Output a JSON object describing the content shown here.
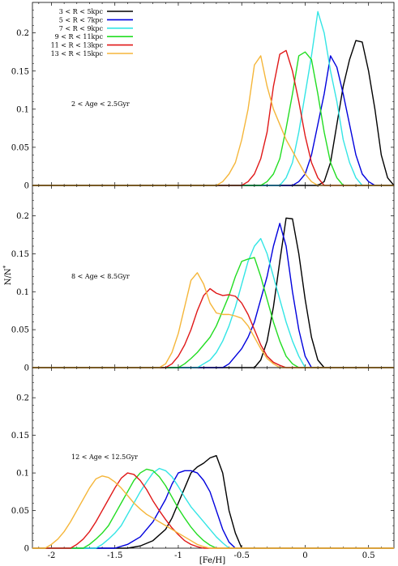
{
  "chart_data": {
    "type": "line",
    "xlabel": "[Fe/H]",
    "ylabel": "N/N*",
    "xlim": [
      -2.15,
      0.7
    ],
    "ylim": [
      0,
      0.24
    ],
    "x_ticks": [
      "-2",
      "-1.5",
      "-1",
      "-0.5",
      "0",
      "0.5"
    ],
    "x_tick_values": [
      -2,
      -1.5,
      -1,
      -0.5,
      0,
      0.5
    ],
    "y_ticks": [
      "0",
      "0.05",
      "0.1",
      "0.15",
      "0.2"
    ],
    "y_tick_values": [
      0,
      0.05,
      0.1,
      0.15,
      0.2
    ],
    "legend": {
      "placement": "top-left",
      "entries": [
        {
          "label": "3 < R < 5kpc",
          "color": "#000000"
        },
        {
          "label": "5 < R < 7kpc",
          "color": "#0000dd"
        },
        {
          "label": "7 < R < 9kpc",
          "color": "#33e5e5"
        },
        {
          "label": "9 < R < 11kpc",
          "color": "#22dd22"
        },
        {
          "label": "11 < R < 13kpc",
          "color": "#e01818"
        },
        {
          "label": "13 < R < 15kpc",
          "color": "#f5b63a"
        }
      ]
    },
    "panels": [
      {
        "age_label": "2 < Age < 2.5Gyr",
        "series": [
          {
            "x": [
              -2.15,
              0.1,
              0.15,
              0.2,
              0.25,
              0.3,
              0.35,
              0.4,
              0.45,
              0.5,
              0.55,
              0.6,
              0.65,
              0.7
            ],
            "y": [
              0,
              0,
              0.005,
              0.03,
              0.08,
              0.13,
              0.165,
              0.19,
              0.188,
              0.15,
              0.1,
              0.04,
              0.01,
              0
            ]
          },
          {
            "x": [
              -2.15,
              -0.1,
              -0.05,
              0,
              0.05,
              0.1,
              0.15,
              0.2,
              0.25,
              0.3,
              0.35,
              0.4,
              0.45,
              0.5,
              0.55,
              0.7
            ],
            "y": [
              0,
              0,
              0.005,
              0.015,
              0.04,
              0.08,
              0.12,
              0.17,
              0.155,
              0.12,
              0.08,
              0.04,
              0.015,
              0.005,
              0,
              0
            ]
          },
          {
            "x": [
              -2.15,
              -0.2,
              -0.15,
              -0.1,
              -0.05,
              0,
              0.05,
              0.1,
              0.15,
              0.2,
              0.25,
              0.3,
              0.35,
              0.4,
              0.45,
              0.7
            ],
            "y": [
              0,
              0,
              0.01,
              0.03,
              0.07,
              0.12,
              0.17,
              0.228,
              0.2,
              0.15,
              0.11,
              0.06,
              0.03,
              0.01,
              0,
              0
            ]
          },
          {
            "x": [
              -2.15,
              -0.35,
              -0.3,
              -0.25,
              -0.2,
              -0.15,
              -0.1,
              -0.05,
              0,
              0.05,
              0.1,
              0.15,
              0.2,
              0.25,
              0.3,
              0.7
            ],
            "y": [
              0,
              0,
              0.005,
              0.015,
              0.035,
              0.075,
              0.12,
              0.17,
              0.175,
              0.165,
              0.12,
              0.07,
              0.03,
              0.01,
              0,
              0
            ]
          },
          {
            "x": [
              -2.15,
              -0.5,
              -0.45,
              -0.4,
              -0.35,
              -0.3,
              -0.25,
              -0.2,
              -0.15,
              -0.1,
              -0.05,
              0,
              0.05,
              0.1,
              0.15,
              0.7
            ],
            "y": [
              0,
              0,
              0.005,
              0.015,
              0.035,
              0.07,
              0.13,
              0.172,
              0.177,
              0.15,
              0.11,
              0.065,
              0.03,
              0.01,
              0,
              0
            ]
          },
          {
            "x": [
              -2.15,
              -0.7,
              -0.65,
              -0.6,
              -0.55,
              -0.5,
              -0.45,
              -0.4,
              -0.35,
              -0.3,
              -0.25,
              -0.2,
              -0.15,
              -0.1,
              -0.05,
              0,
              0.05,
              0.1,
              0.15,
              0.7
            ],
            "y": [
              0,
              0,
              0.005,
              0.015,
              0.03,
              0.06,
              0.1,
              0.158,
              0.17,
              0.13,
              0.1,
              0.08,
              0.06,
              0.045,
              0.03,
              0.015,
              0.005,
              0,
              0,
              0
            ]
          }
        ]
      },
      {
        "age_label": "8 < Age < 8.5Gyr",
        "series": [
          {
            "x": [
              -2.15,
              -0.4,
              -0.35,
              -0.3,
              -0.25,
              -0.2,
              -0.15,
              -0.1,
              -0.05,
              0,
              0.05,
              0.1,
              0.15,
              0.7
            ],
            "y": [
              0,
              0,
              0.01,
              0.035,
              0.08,
              0.14,
              0.197,
              0.196,
              0.15,
              0.09,
              0.04,
              0.01,
              0,
              0
            ]
          },
          {
            "x": [
              -2.15,
              -0.65,
              -0.6,
              -0.55,
              -0.5,
              -0.45,
              -0.4,
              -0.35,
              -0.3,
              -0.25,
              -0.2,
              -0.15,
              -0.1,
              -0.05,
              0,
              0.05,
              0.7
            ],
            "y": [
              0,
              0,
              0.005,
              0.015,
              0.025,
              0.04,
              0.06,
              0.09,
              0.12,
              0.16,
              0.19,
              0.16,
              0.1,
              0.05,
              0.015,
              0,
              0
            ]
          },
          {
            "x": [
              -2.15,
              -0.85,
              -0.8,
              -0.75,
              -0.7,
              -0.65,
              -0.6,
              -0.55,
              -0.5,
              -0.45,
              -0.4,
              -0.35,
              -0.3,
              -0.25,
              -0.2,
              -0.15,
              -0.1,
              -0.05,
              0,
              0.7
            ],
            "y": [
              0,
              0,
              0.005,
              0.01,
              0.02,
              0.035,
              0.055,
              0.08,
              0.11,
              0.14,
              0.16,
              0.17,
              0.15,
              0.12,
              0.09,
              0.06,
              0.035,
              0.015,
              0,
              0
            ]
          },
          {
            "x": [
              -2.15,
              -1.0,
              -0.95,
              -0.9,
              -0.85,
              -0.8,
              -0.75,
              -0.7,
              -0.65,
              -0.6,
              -0.55,
              -0.5,
              -0.45,
              -0.4,
              -0.35,
              -0.3,
              -0.25,
              -0.2,
              -0.15,
              -0.1,
              -0.05,
              0.7
            ],
            "y": [
              0,
              0,
              0.005,
              0.012,
              0.02,
              0.03,
              0.04,
              0.055,
              0.075,
              0.095,
              0.12,
              0.14,
              0.143,
              0.145,
              0.12,
              0.09,
              0.06,
              0.035,
              0.015,
              0.005,
              0,
              0
            ]
          },
          {
            "x": [
              -2.15,
              -1.1,
              -1.05,
              -1.0,
              -0.95,
              -0.9,
              -0.85,
              -0.8,
              -0.75,
              -0.7,
              -0.65,
              -0.6,
              -0.55,
              -0.5,
              -0.45,
              -0.4,
              -0.35,
              -0.3,
              -0.25,
              -0.2,
              -0.15,
              -0.1,
              0.7
            ],
            "y": [
              0,
              0,
              0.005,
              0.015,
              0.03,
              0.05,
              0.075,
              0.095,
              0.104,
              0.098,
              0.095,
              0.096,
              0.094,
              0.085,
              0.07,
              0.05,
              0.03,
              0.015,
              0.007,
              0.003,
              0,
              0,
              0
            ]
          },
          {
            "x": [
              -2.15,
              -1.15,
              -1.1,
              -1.05,
              -1.0,
              -0.95,
              -0.9,
              -0.85,
              -0.8,
              -0.75,
              -0.7,
              -0.65,
              -0.6,
              -0.55,
              -0.5,
              -0.45,
              -0.4,
              -0.35,
              -0.3,
              -0.25,
              -0.2,
              0.7
            ],
            "y": [
              0,
              0,
              0.005,
              0.02,
              0.045,
              0.08,
              0.115,
              0.125,
              0.11,
              0.085,
              0.072,
              0.07,
              0.07,
              0.068,
              0.065,
              0.055,
              0.04,
              0.025,
              0.012,
              0.005,
              0,
              0
            ]
          }
        ]
      },
      {
        "age_label": "12 < Age < 12.5Gyr",
        "series": [
          {
            "x": [
              -2.15,
              -1.4,
              -1.3,
              -1.2,
              -1.1,
              -1.05,
              -1.0,
              -0.95,
              -0.9,
              -0.85,
              -0.8,
              -0.75,
              -0.7,
              -0.65,
              -0.6,
              -0.55,
              -0.5,
              0.7
            ],
            "y": [
              0,
              0,
              0.003,
              0.01,
              0.025,
              0.04,
              0.06,
              0.08,
              0.1,
              0.108,
              0.113,
              0.12,
              0.123,
              0.1,
              0.05,
              0.02,
              0,
              0
            ]
          },
          {
            "x": [
              -2.15,
              -1.5,
              -1.4,
              -1.3,
              -1.2,
              -1.15,
              -1.1,
              -1.05,
              -1.0,
              -0.95,
              -0.9,
              -0.85,
              -0.8,
              -0.75,
              -0.7,
              -0.65,
              -0.6,
              -0.55,
              0.7
            ],
            "y": [
              0,
              0,
              0.005,
              0.015,
              0.035,
              0.05,
              0.065,
              0.085,
              0.1,
              0.103,
              0.103,
              0.1,
              0.09,
              0.075,
              0.05,
              0.025,
              0.008,
              0,
              0
            ]
          },
          {
            "x": [
              -2.15,
              -1.65,
              -1.6,
              -1.55,
              -1.5,
              -1.45,
              -1.4,
              -1.35,
              -1.3,
              -1.25,
              -1.2,
              -1.15,
              -1.1,
              -1.05,
              -1.0,
              -0.95,
              -0.9,
              -0.85,
              -0.8,
              -0.75,
              -0.7,
              -0.65,
              -0.6,
              0.7
            ],
            "y": [
              0,
              0,
              0.005,
              0.012,
              0.02,
              0.03,
              0.045,
              0.06,
              0.075,
              0.088,
              0.1,
              0.106,
              0.103,
              0.095,
              0.082,
              0.068,
              0.055,
              0.045,
              0.035,
              0.025,
              0.015,
              0.007,
              0,
              0
            ]
          },
          {
            "x": [
              -2.15,
              -1.75,
              -1.7,
              -1.65,
              -1.6,
              -1.55,
              -1.5,
              -1.45,
              -1.4,
              -1.35,
              -1.3,
              -1.25,
              -1.2,
              -1.15,
              -1.1,
              -1.05,
              -1.0,
              -0.95,
              -0.9,
              -0.85,
              -0.8,
              -0.75,
              -0.7,
              0.7
            ],
            "y": [
              0,
              0,
              0.005,
              0.012,
              0.02,
              0.03,
              0.045,
              0.06,
              0.075,
              0.09,
              0.1,
              0.105,
              0.103,
              0.095,
              0.083,
              0.068,
              0.053,
              0.04,
              0.028,
              0.018,
              0.01,
              0.004,
              0,
              0
            ]
          },
          {
            "x": [
              -2.15,
              -1.85,
              -1.8,
              -1.75,
              -1.7,
              -1.65,
              -1.6,
              -1.55,
              -1.5,
              -1.45,
              -1.4,
              -1.35,
              -1.3,
              -1.25,
              -1.2,
              -1.15,
              -1.1,
              -1.05,
              -1.0,
              -0.95,
              -0.9,
              -0.85,
              -0.8,
              0.7
            ],
            "y": [
              0,
              0,
              0.005,
              0.012,
              0.022,
              0.035,
              0.05,
              0.065,
              0.08,
              0.093,
              0.1,
              0.098,
              0.09,
              0.078,
              0.063,
              0.05,
              0.038,
              0.027,
              0.018,
              0.01,
              0.005,
              0.002,
              0,
              0
            ]
          },
          {
            "x": [
              -2.15,
              -2.05,
              -2.0,
              -1.95,
              -1.9,
              -1.85,
              -1.8,
              -1.75,
              -1.7,
              -1.65,
              -1.6,
              -1.55,
              -1.5,
              -1.45,
              -1.4,
              -1.35,
              -1.3,
              -1.25,
              -1.2,
              -1.15,
              -1.1,
              -1.05,
              -1.0,
              -0.95,
              -0.9,
              -0.85,
              -0.8,
              -0.75,
              0.7
            ],
            "y": [
              0,
              0,
              0.005,
              0.012,
              0.022,
              0.035,
              0.05,
              0.065,
              0.08,
              0.092,
              0.096,
              0.094,
              0.088,
              0.08,
              0.07,
              0.06,
              0.052,
              0.045,
              0.04,
              0.035,
              0.03,
              0.025,
              0.02,
              0.015,
              0.01,
              0.005,
              0.002,
              0,
              0
            ]
          }
        ]
      }
    ]
  }
}
